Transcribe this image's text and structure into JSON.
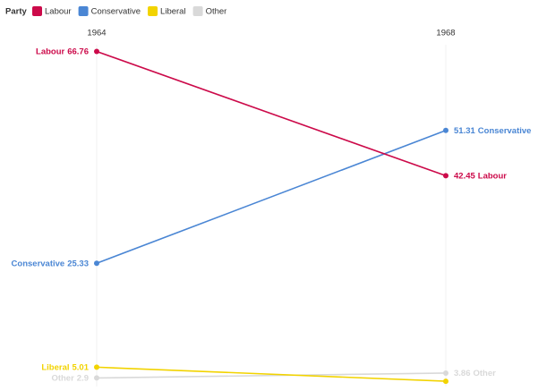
{
  "chart_data": {
    "type": "slope",
    "legend_title": "Party",
    "categories": [
      "1964",
      "1968"
    ],
    "series": [
      {
        "name": "Labour",
        "color": "#cc0a4a",
        "values": [
          66.76,
          42.45
        ]
      },
      {
        "name": "Conservative",
        "color": "#4a86d4",
        "values": [
          25.33,
          51.31
        ]
      },
      {
        "name": "Liberal",
        "color": "#f2d300",
        "values": [
          5.01,
          2.26
        ]
      },
      {
        "name": "Other",
        "color": "#d9d9d9",
        "values": [
          2.9,
          3.86
        ]
      }
    ],
    "ylim": [
      0,
      70
    ],
    "grid": true
  }
}
